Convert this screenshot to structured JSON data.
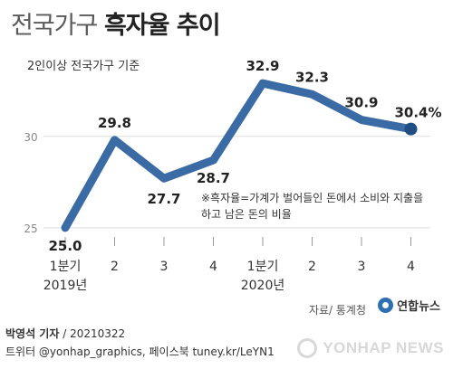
{
  "header": {
    "title_light": "전국가구",
    "title_bold": "흑자율 추이",
    "subtitle": "2인이상 전국가구 기준"
  },
  "annotation": {
    "line1": "※흑자율=가계가 벌어들인 돈에서 소비와 지출을",
    "line2": "하고 남은 돈의 비율"
  },
  "footer": {
    "source": "자료/ 통계청",
    "logo_text": "연합뉴스",
    "author": "박영석 기자",
    "date": "/ 20210322",
    "social": "트위터 @yonhap_graphics, 페이스북 tuney.kr/LeYN1",
    "watermark": "YONHAP NEWS"
  },
  "colors": {
    "line": "#3b6ba5",
    "end_marker": "#1f4e85",
    "grid": "#dddddd"
  },
  "chart_data": {
    "type": "line",
    "title": "흑자율 추이",
    "categories": [
      "1분기",
      "2",
      "3",
      "4",
      "1분기",
      "2",
      "3",
      "4"
    ],
    "year_labels": [
      {
        "index": 0,
        "label": "2019년"
      },
      {
        "index": 4,
        "label": "2020년"
      }
    ],
    "series": [
      {
        "values": [
          25.0,
          29.8,
          27.7,
          28.7,
          32.9,
          32.3,
          30.9,
          30.4
        ],
        "labels": [
          "25.0",
          "29.8",
          "27.7",
          "28.7",
          "32.9",
          "32.3",
          "30.9",
          "30.4%"
        ]
      }
    ],
    "yticks": [
      25,
      30
    ],
    "ylim": [
      24.2,
      33.5
    ],
    "grid": true,
    "xlabel": "",
    "ylabel": ""
  }
}
